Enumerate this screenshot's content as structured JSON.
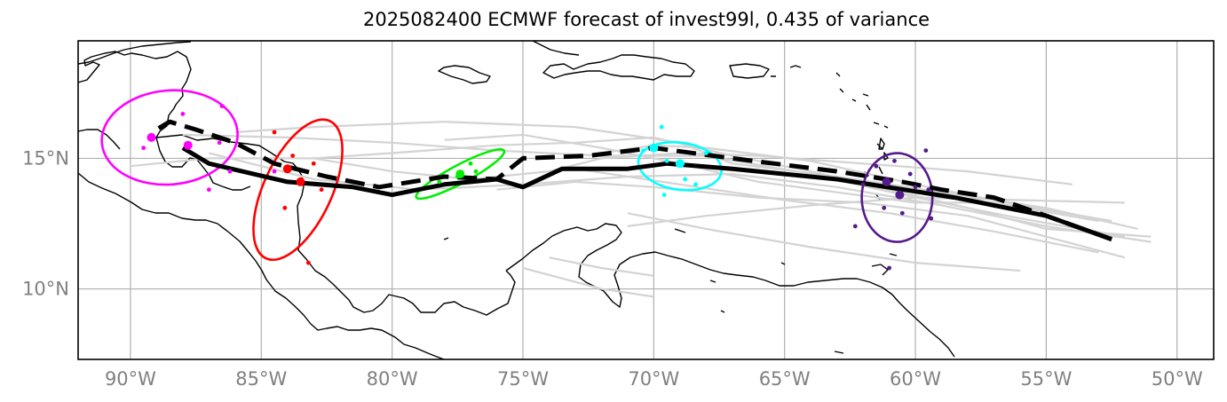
{
  "title": "2025082400 ECMWF forecast of invest99l, 0.435 of variance",
  "x_ticks": [
    {
      "lon": -90,
      "label": "90°W"
    },
    {
      "lon": -85,
      "label": "85°W"
    },
    {
      "lon": -80,
      "label": "80°W"
    },
    {
      "lon": -75,
      "label": "75°W"
    },
    {
      "lon": -70,
      "label": "70°W"
    },
    {
      "lon": -65,
      "label": "65°W"
    },
    {
      "lon": -60,
      "label": "60°W"
    },
    {
      "lon": -55,
      "label": "55°W"
    },
    {
      "lon": -50,
      "label": "50°W"
    }
  ],
  "y_ticks": [
    {
      "lat": 15,
      "label": "15°N"
    },
    {
      "lat": 10,
      "label": "10°N"
    }
  ],
  "extent": {
    "lon": [
      -92,
      -48.6
    ],
    "lat": [
      7.3,
      19.5
    ]
  },
  "colors": {
    "ensemble": "#d3d3d3",
    "track": "#000000",
    "coast": "#000000",
    "grid": "#b0b0b0",
    "timesteps": [
      "#ff00ff",
      "#ff0000",
      "#00ee00",
      "#00ffff",
      "#551a8b"
    ]
  },
  "chart_data": {
    "type": "map",
    "solid_track": [
      [
        -52.5,
        11.9
      ],
      [
        -55,
        12.8
      ],
      [
        -58.5,
        13.5
      ],
      [
        -63,
        14.2
      ],
      [
        -67,
        14.6
      ],
      [
        -69.5,
        14.8
      ],
      [
        -71,
        14.6
      ],
      [
        -73.5,
        14.6
      ],
      [
        -75,
        13.9
      ],
      [
        -76,
        14.2
      ],
      [
        -78,
        14.0
      ],
      [
        -80,
        13.6
      ],
      [
        -81.5,
        13.9
      ],
      [
        -84,
        14.1
      ],
      [
        -87,
        14.8
      ],
      [
        -88,
        15.4
      ]
    ],
    "dashed_track": [
      [
        -52.5,
        11.9
      ],
      [
        -55,
        12.8
      ],
      [
        -57,
        13.5
      ],
      [
        -59,
        13.8
      ],
      [
        -60.5,
        14.1
      ],
      [
        -63,
        14.5
      ],
      [
        -67,
        15.0
      ],
      [
        -70,
        15.4
      ],
      [
        -72.5,
        15.1
      ],
      [
        -75,
        15.0
      ],
      [
        -76,
        14.2
      ],
      [
        -78,
        14.3
      ],
      [
        -80.5,
        13.9
      ],
      [
        -82.5,
        14.3
      ],
      [
        -84.5,
        14.8
      ],
      [
        -86,
        15.6
      ],
      [
        -87.5,
        16.1
      ],
      [
        -88.5,
        16.4
      ],
      [
        -89,
        16.1
      ]
    ],
    "ensemble_tracks": [
      [
        [
          -52,
          12.0
        ],
        [
          -56,
          12.7
        ],
        [
          -60,
          13.5
        ],
        [
          -64,
          14.4
        ],
        [
          -68,
          15.1
        ],
        [
          -72,
          15.1
        ],
        [
          -76,
          15.3
        ],
        [
          -80,
          15.6
        ],
        [
          -84,
          15.8
        ],
        [
          -88,
          15.9
        ]
      ],
      [
        [
          -51,
          11.8
        ],
        [
          -55,
          12.4
        ],
        [
          -59,
          13.2
        ],
        [
          -63,
          13.9
        ],
        [
          -67,
          14.4
        ],
        [
          -71,
          14.3
        ],
        [
          -75,
          14.0
        ],
        [
          -79,
          13.8
        ],
        [
          -83,
          14.2
        ],
        [
          -87,
          15.2
        ]
      ],
      [
        [
          -52.5,
          12.6
        ],
        [
          -56,
          13.2
        ],
        [
          -60,
          14.0
        ],
        [
          -64,
          14.9
        ],
        [
          -68,
          15.4
        ],
        [
          -70,
          15.5
        ],
        [
          -72,
          15.2
        ]
      ],
      [
        [
          -53,
          11.4
        ],
        [
          -57,
          12.2
        ],
        [
          -61,
          12.9
        ],
        [
          -65,
          13.4
        ],
        [
          -69,
          14.0
        ],
        [
          -73,
          14.6
        ],
        [
          -77,
          14.2
        ],
        [
          -80,
          14.5
        ],
        [
          -83,
          15.0
        ]
      ],
      [
        [
          -51.5,
          12.3
        ],
        [
          -55,
          13.1
        ],
        [
          -59,
          13.7
        ],
        [
          -63,
          14.3
        ],
        [
          -67,
          14.8
        ],
        [
          -69,
          15.6
        ],
        [
          -73,
          16.2
        ],
        [
          -78,
          16.4
        ],
        [
          -83,
          16.2
        ],
        [
          -86,
          16.0
        ]
      ],
      [
        [
          -52,
          11.2
        ],
        [
          -55,
          12.0
        ],
        [
          -58,
          12.8
        ],
        [
          -62,
          13.3
        ],
        [
          -66,
          13.5
        ],
        [
          -70,
          13.9
        ],
        [
          -73,
          14.1
        ],
        [
          -76,
          13.8
        ]
      ],
      [
        [
          -56,
          10.7
        ],
        [
          -60,
          11.0
        ],
        [
          -64,
          11.6
        ],
        [
          -68,
          12.3
        ],
        [
          -71,
          12.9
        ]
      ],
      [
        [
          -51,
          12.0
        ],
        [
          -55,
          12.3
        ],
        [
          -58,
          13.1
        ],
        [
          -61,
          13.8
        ],
        [
          -64,
          14.5
        ],
        [
          -67,
          15.1
        ],
        [
          -70,
          15.8
        ],
        [
          -73,
          15.6
        ],
        [
          -76,
          15.5
        ],
        [
          -80,
          15.2
        ],
        [
          -83,
          15.0
        ],
        [
          -87,
          15.0
        ],
        [
          -90,
          14.7
        ]
      ],
      [
        [
          -53,
          12.6
        ],
        [
          -57,
          13.3
        ],
        [
          -60,
          13.3
        ],
        [
          -63,
          13.7
        ],
        [
          -66,
          14.1
        ],
        [
          -69,
          14.8
        ],
        [
          -72,
          15.4
        ],
        [
          -75,
          15.9
        ],
        [
          -78,
          15.7
        ]
      ],
      [
        [
          -54,
          14.0
        ],
        [
          -58,
          14.5
        ],
        [
          -62,
          14.8
        ],
        [
          -66,
          15.1
        ],
        [
          -69,
          15.2
        ],
        [
          -72,
          15.0
        ],
        [
          -74,
          14.5
        ]
      ],
      [
        [
          -74,
          11.2
        ],
        [
          -72,
          10.8
        ],
        [
          -70,
          10.5
        ]
      ],
      [
        [
          -75,
          10.8
        ],
        [
          -72,
          10.0
        ],
        [
          -70,
          9.7
        ]
      ],
      [
        [
          -52,
          13.3
        ],
        [
          -56,
          13.4
        ],
        [
          -60,
          13.5
        ],
        [
          -64,
          13.2
        ],
        [
          -68,
          12.8
        ],
        [
          -71,
          12.4
        ]
      ]
    ],
    "timestep_ellipses": [
      {
        "color_index": 0,
        "center": [
          -88.5,
          15.8
        ],
        "semi_axes_deg": [
          2.6,
          1.8
        ],
        "tilt_deg": -5
      },
      {
        "color_index": 1,
        "center": [
          -83.6,
          13.8
        ],
        "semi_axes_deg": [
          1.3,
          2.9
        ],
        "tilt_deg": 25
      },
      {
        "color_index": 2,
        "center": [
          -77.4,
          14.4
        ],
        "semi_axes_deg": [
          1.9,
          0.35
        ],
        "tilt_deg": -28
      },
      {
        "color_index": 3,
        "center": [
          -69.0,
          14.7
        ],
        "semi_axes_deg": [
          1.6,
          0.9
        ],
        "tilt_deg": 8
      },
      {
        "color_index": 4,
        "center": [
          -60.7,
          13.5
        ],
        "semi_axes_deg": [
          1.35,
          1.7
        ],
        "tilt_deg": 0
      }
    ],
    "timestep_points": [
      {
        "color_index": 0,
        "points": [
          [
            -89.2,
            15.8
          ],
          [
            -87.8,
            15.5
          ],
          [
            -86.5,
            17.0
          ],
          [
            -86.6,
            15.6
          ],
          [
            -89.5,
            15.4
          ],
          [
            -88.0,
            16.7
          ],
          [
            -84.5,
            14.5
          ],
          [
            -86.2,
            14.5
          ],
          [
            -87.0,
            13.8
          ]
        ]
      },
      {
        "color_index": 1,
        "points": [
          [
            -84.0,
            14.6
          ],
          [
            -83.5,
            14.1
          ],
          [
            -84.5,
            16.0
          ],
          [
            -83.0,
            14.8
          ],
          [
            -82.7,
            13.8
          ],
          [
            -84.1,
            13.1
          ],
          [
            -83.2,
            11.0
          ],
          [
            -83.8,
            15.1
          ]
        ]
      },
      {
        "color_index": 2,
        "points": [
          [
            -77.5,
            14.3
          ],
          [
            -76.8,
            14.5
          ],
          [
            -78.2,
            14.1
          ],
          [
            -77.0,
            14.8
          ]
        ]
      },
      {
        "color_index": 3,
        "points": [
          [
            -70.0,
            15.4
          ],
          [
            -68.9,
            14.8
          ],
          [
            -69.7,
            16.2
          ],
          [
            -68.0,
            15.2
          ],
          [
            -69.6,
            13.6
          ],
          [
            -68.4,
            14.0
          ],
          [
            -70.4,
            15.3
          ],
          [
            -68.8,
            14.2
          ],
          [
            -69.5,
            14.9
          ]
        ]
      },
      {
        "color_index": 4,
        "points": [
          [
            -61.1,
            14.1
          ],
          [
            -60.6,
            13.6
          ],
          [
            -59.6,
            15.3
          ],
          [
            -62.3,
            12.4
          ],
          [
            -60.2,
            14.4
          ],
          [
            -59.4,
            12.7
          ],
          [
            -61.5,
            14.7
          ],
          [
            -60.0,
            13.9
          ],
          [
            -61.2,
            13.1
          ],
          [
            -60.5,
            12.9
          ],
          [
            -61.0,
            10.8
          ],
          [
            -59.5,
            13.8
          ],
          [
            -62.0,
            14.0
          ],
          [
            -60.8,
            14.9
          ]
        ]
      }
    ],
    "timestep_centers": [
      {
        "color_index": 0,
        "points": [
          [
            -89.2,
            15.8
          ],
          [
            -87.8,
            15.5
          ]
        ]
      },
      {
        "color_index": 1,
        "points": [
          [
            -84.0,
            14.6
          ],
          [
            -83.5,
            14.1
          ]
        ]
      },
      {
        "color_index": 2,
        "points": [
          [
            -77.4,
            14.4
          ]
        ]
      },
      {
        "color_index": 3,
        "points": [
          [
            -70.0,
            15.4
          ],
          [
            -69.0,
            14.8
          ]
        ]
      },
      {
        "color_index": 4,
        "points": [
          [
            -61.1,
            14.1
          ],
          [
            -60.6,
            13.6
          ]
        ]
      }
    ]
  }
}
